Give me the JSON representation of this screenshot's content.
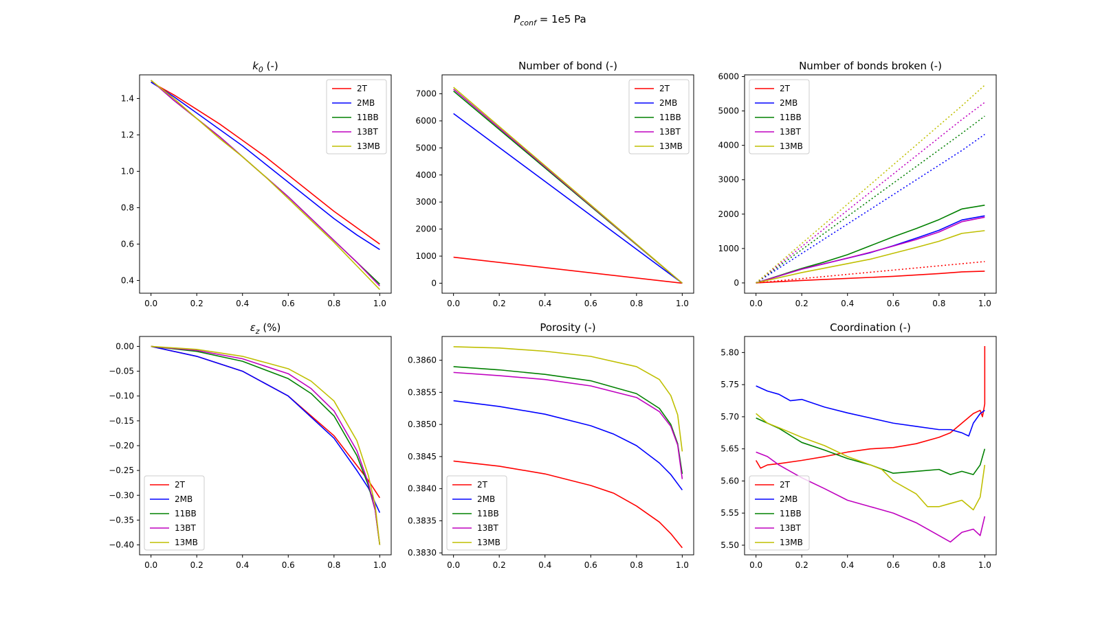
{
  "suptitle": {
    "main": "P",
    "sub": "conf",
    "rest": " = 1e5 Pa"
  },
  "colors": {
    "2T": "#ff0000",
    "2MB": "#0000ff",
    "11BB": "#008000",
    "13BT": "#bf00bf",
    "13MB": "#bfbf00"
  },
  "legend_labels": [
    "2T",
    "2MB",
    "11BB",
    "13BT",
    "13MB"
  ],
  "chart_data": [
    {
      "id": "k0",
      "type": "line",
      "title": {
        "main": "k",
        "sub": "0",
        "rest": " (-)"
      },
      "xlim": [
        -0.05,
        1.05
      ],
      "ylim": [
        0.33,
        1.53
      ],
      "xticks": [
        0.0,
        0.2,
        0.4,
        0.6,
        0.8,
        1.0
      ],
      "xtick_labels": [
        "0.0",
        "0.2",
        "0.4",
        "0.6",
        "0.8",
        "1.0"
      ],
      "yticks": [
        0.4,
        0.6,
        0.8,
        1.0,
        1.2,
        1.4
      ],
      "ytick_labels": [
        "0.4",
        "0.6",
        "0.8",
        "1.0",
        "1.2",
        "1.4"
      ],
      "legend": "top-right",
      "series": [
        {
          "name": "2T",
          "x": [
            0,
            0.1,
            0.2,
            0.3,
            0.4,
            0.5,
            0.6,
            0.7,
            0.8,
            0.9,
            1.0
          ],
          "y": [
            1.49,
            1.42,
            1.34,
            1.26,
            1.17,
            1.08,
            0.98,
            0.88,
            0.78,
            0.69,
            0.6
          ]
        },
        {
          "name": "2MB",
          "x": [
            0,
            0.1,
            0.2,
            0.3,
            0.4,
            0.5,
            0.6,
            0.7,
            0.8,
            0.9,
            1.0
          ],
          "y": [
            1.49,
            1.41,
            1.32,
            1.23,
            1.14,
            1.04,
            0.94,
            0.84,
            0.74,
            0.65,
            0.57
          ]
        },
        {
          "name": "11BB",
          "x": [
            0,
            0.1,
            0.2,
            0.3,
            0.4,
            0.5,
            0.6,
            0.7,
            0.8,
            0.9,
            1.0
          ],
          "y": [
            1.5,
            1.39,
            1.29,
            1.19,
            1.08,
            0.97,
            0.86,
            0.74,
            0.62,
            0.5,
            0.38
          ]
        },
        {
          "name": "13BT",
          "x": [
            0,
            0.1,
            0.2,
            0.3,
            0.4,
            0.5,
            0.6,
            0.7,
            0.8,
            0.9,
            1.0
          ],
          "y": [
            1.5,
            1.39,
            1.29,
            1.19,
            1.08,
            0.97,
            0.86,
            0.74,
            0.62,
            0.5,
            0.37
          ]
        },
        {
          "name": "13MB",
          "x": [
            0,
            0.1,
            0.2,
            0.3,
            0.4,
            0.5,
            0.6,
            0.7,
            0.8,
            0.9,
            1.0
          ],
          "y": [
            1.5,
            1.4,
            1.29,
            1.18,
            1.08,
            0.97,
            0.85,
            0.73,
            0.61,
            0.48,
            0.35
          ]
        }
      ]
    },
    {
      "id": "bonds",
      "type": "line",
      "title": {
        "main": "Number of bond (-)",
        "sub": "",
        "rest": ""
      },
      "xlim": [
        -0.05,
        1.05
      ],
      "ylim": [
        -370,
        7700
      ],
      "xticks": [
        0.0,
        0.2,
        0.4,
        0.6,
        0.8,
        1.0
      ],
      "xtick_labels": [
        "0.0",
        "0.2",
        "0.4",
        "0.6",
        "0.8",
        "1.0"
      ],
      "yticks": [
        0,
        1000,
        2000,
        3000,
        4000,
        5000,
        6000,
        7000
      ],
      "ytick_labels": [
        "0",
        "1000",
        "2000",
        "3000",
        "4000",
        "5000",
        "6000",
        "7000"
      ],
      "legend": "top-right",
      "series": [
        {
          "name": "2T",
          "x": [
            0,
            1
          ],
          "y": [
            960,
            0
          ]
        },
        {
          "name": "2MB",
          "x": [
            0,
            1
          ],
          "y": [
            6270,
            0
          ]
        },
        {
          "name": "11BB",
          "x": [
            0,
            1
          ],
          "y": [
            7100,
            0
          ]
        },
        {
          "name": "13BT",
          "x": [
            0,
            1
          ],
          "y": [
            7170,
            0
          ]
        },
        {
          "name": "13MB",
          "x": [
            0,
            1
          ],
          "y": [
            7240,
            0
          ]
        }
      ]
    },
    {
      "id": "broken",
      "type": "line",
      "title": {
        "main": "Number of bonds broken (-)",
        "sub": "",
        "rest": ""
      },
      "xlim": [
        -0.05,
        1.05
      ],
      "ylim": [
        -300,
        6050
      ],
      "xticks": [
        0.0,
        0.2,
        0.4,
        0.6,
        0.8,
        1.0
      ],
      "xtick_labels": [
        "0.0",
        "0.2",
        "0.4",
        "0.6",
        "0.8",
        "1.0"
      ],
      "yticks": [
        0,
        1000,
        2000,
        3000,
        4000,
        5000,
        6000
      ],
      "ytick_labels": [
        "0",
        "1000",
        "2000",
        "3000",
        "4000",
        "5000",
        "6000"
      ],
      "legend": "top-left",
      "series": [
        {
          "name": "2T",
          "x": [
            0,
            0.2,
            0.4,
            0.6,
            0.8,
            0.9,
            1.0
          ],
          "y": [
            0,
            70,
            130,
            190,
            270,
            320,
            340
          ]
        },
        {
          "name": "2MB",
          "x": [
            0,
            0.1,
            0.2,
            0.3,
            0.4,
            0.5,
            0.6,
            0.7,
            0.8,
            0.9,
            1.0
          ],
          "y": [
            0,
            200,
            400,
            560,
            720,
            880,
            1080,
            1300,
            1530,
            1830,
            1950
          ]
        },
        {
          "name": "11BB",
          "x": [
            0,
            0.1,
            0.2,
            0.3,
            0.4,
            0.5,
            0.6,
            0.7,
            0.8,
            0.9,
            1.0
          ],
          "y": [
            0,
            210,
            420,
            610,
            820,
            1080,
            1340,
            1580,
            1840,
            2150,
            2260
          ]
        },
        {
          "name": "13BT",
          "x": [
            0,
            0.1,
            0.2,
            0.3,
            0.4,
            0.5,
            0.6,
            0.7,
            0.8,
            0.9,
            1.0
          ],
          "y": [
            0,
            200,
            400,
            560,
            720,
            890,
            1070,
            1260,
            1480,
            1780,
            1910
          ]
        },
        {
          "name": "13MB",
          "x": [
            0,
            0.1,
            0.2,
            0.3,
            0.4,
            0.5,
            0.6,
            0.7,
            0.8,
            0.9,
            1.0
          ],
          "y": [
            0,
            150,
            300,
            430,
            560,
            690,
            860,
            1030,
            1210,
            1440,
            1520
          ]
        },
        {
          "name": "2T",
          "dotted": true,
          "x": [
            0,
            1
          ],
          "y": [
            0,
            620
          ]
        },
        {
          "name": "2MB",
          "dotted": true,
          "x": [
            0,
            0.9,
            1.0
          ],
          "y": [
            0,
            3850,
            4320
          ]
        },
        {
          "name": "11BB",
          "dotted": true,
          "x": [
            0,
            0.9,
            1.0
          ],
          "y": [
            0,
            4350,
            4850
          ]
        },
        {
          "name": "13BT",
          "dotted": true,
          "x": [
            0,
            0.9,
            1.0
          ],
          "y": [
            0,
            4750,
            5250
          ]
        },
        {
          "name": "13MB",
          "dotted": true,
          "x": [
            0,
            0.9,
            1.0
          ],
          "y": [
            0,
            5150,
            5750
          ]
        }
      ]
    },
    {
      "id": "epsz",
      "type": "line",
      "title": {
        "main": "ε",
        "sub": "z",
        "rest": " (%)"
      },
      "xlim": [
        -0.05,
        1.05
      ],
      "ylim": [
        -0.42,
        0.02
      ],
      "xticks": [
        0.0,
        0.2,
        0.4,
        0.6,
        0.8,
        1.0
      ],
      "xtick_labels": [
        "0.0",
        "0.2",
        "0.4",
        "0.6",
        "0.8",
        "1.0"
      ],
      "yticks": [
        0.0,
        -0.05,
        -0.1,
        -0.15,
        -0.2,
        -0.25,
        -0.3,
        -0.35,
        -0.4
      ],
      "ytick_labels": [
        "0.00",
        "−0.05",
        "−0.10",
        "−0.15",
        "−0.20",
        "−0.25",
        "−0.30",
        "−0.35",
        "−0.40"
      ],
      "legend": "bottom-left",
      "series": [
        {
          "name": "2T",
          "x": [
            0,
            0.2,
            0.4,
            0.6,
            0.8,
            0.9,
            0.95,
            1.0
          ],
          "y": [
            0,
            -0.02,
            -0.05,
            -0.1,
            -0.18,
            -0.24,
            -0.27,
            -0.305
          ]
        },
        {
          "name": "2MB",
          "x": [
            0,
            0.2,
            0.4,
            0.6,
            0.8,
            0.9,
            0.95,
            1.0
          ],
          "y": [
            0,
            -0.02,
            -0.05,
            -0.1,
            -0.185,
            -0.25,
            -0.285,
            -0.335
          ]
        },
        {
          "name": "11BB",
          "x": [
            0,
            0.2,
            0.4,
            0.6,
            0.7,
            0.8,
            0.9,
            0.95,
            0.98,
            1.0
          ],
          "y": [
            0,
            -0.01,
            -0.03,
            -0.065,
            -0.095,
            -0.14,
            -0.22,
            -0.28,
            -0.33,
            -0.4
          ]
        },
        {
          "name": "13BT",
          "x": [
            0,
            0.2,
            0.4,
            0.6,
            0.7,
            0.8,
            0.9,
            0.95,
            0.98,
            1.0
          ],
          "y": [
            0,
            -0.008,
            -0.025,
            -0.055,
            -0.085,
            -0.13,
            -0.21,
            -0.275,
            -0.33,
            -0.4
          ]
        },
        {
          "name": "13MB",
          "x": [
            0,
            0.2,
            0.4,
            0.6,
            0.7,
            0.8,
            0.9,
            0.95,
            0.98,
            1.0
          ],
          "y": [
            0,
            -0.006,
            -0.02,
            -0.045,
            -0.07,
            -0.11,
            -0.19,
            -0.26,
            -0.32,
            -0.4
          ]
        }
      ]
    },
    {
      "id": "porosity",
      "type": "line",
      "title": {
        "main": "Porosity (-)",
        "sub": "",
        "rest": ""
      },
      "xlim": [
        -0.05,
        1.05
      ],
      "ylim": [
        0.38297,
        0.38637
      ],
      "xticks": [
        0.0,
        0.2,
        0.4,
        0.6,
        0.8,
        1.0
      ],
      "xtick_labels": [
        "0.0",
        "0.2",
        "0.4",
        "0.6",
        "0.8",
        "1.0"
      ],
      "yticks": [
        0.383,
        0.3835,
        0.384,
        0.3845,
        0.385,
        0.3855,
        0.386
      ],
      "ytick_labels": [
        "0.3830",
        "0.3835",
        "0.3840",
        "0.3845",
        "0.3850",
        "0.3855",
        "0.3860"
      ],
      "legend": "bottom-left",
      "series": [
        {
          "name": "2T",
          "x": [
            0,
            0.2,
            0.4,
            0.6,
            0.7,
            0.8,
            0.9,
            0.95,
            1.0
          ],
          "y": [
            0.38443,
            0.38435,
            0.38423,
            0.38405,
            0.38393,
            0.38373,
            0.38348,
            0.3833,
            0.38308
          ]
        },
        {
          "name": "2MB",
          "x": [
            0,
            0.2,
            0.4,
            0.6,
            0.7,
            0.8,
            0.9,
            0.95,
            1.0
          ],
          "y": [
            0.38537,
            0.38528,
            0.38516,
            0.38498,
            0.38485,
            0.38467,
            0.3844,
            0.38422,
            0.38398
          ]
        },
        {
          "name": "11BB",
          "x": [
            0,
            0.2,
            0.4,
            0.6,
            0.8,
            0.9,
            0.95,
            0.98,
            1.0
          ],
          "y": [
            0.3859,
            0.38585,
            0.38578,
            0.38568,
            0.38548,
            0.38525,
            0.385,
            0.3847,
            0.38423
          ]
        },
        {
          "name": "13BT",
          "x": [
            0,
            0.2,
            0.4,
            0.6,
            0.8,
            0.9,
            0.95,
            0.98,
            1.0
          ],
          "y": [
            0.38581,
            0.38576,
            0.3857,
            0.3856,
            0.38542,
            0.3852,
            0.38497,
            0.38468,
            0.38415
          ]
        },
        {
          "name": "13MB",
          "x": [
            0,
            0.2,
            0.4,
            0.6,
            0.8,
            0.9,
            0.95,
            0.98,
            1.0
          ],
          "y": [
            0.38621,
            0.38619,
            0.38614,
            0.38606,
            0.3859,
            0.3857,
            0.38545,
            0.38515,
            0.38458
          ]
        }
      ]
    },
    {
      "id": "coordination",
      "type": "line",
      "title": {
        "main": "Coordination (-)",
        "sub": "",
        "rest": ""
      },
      "xlim": [
        -0.05,
        1.05
      ],
      "ylim": [
        5.485,
        5.825
      ],
      "xticks": [
        0.0,
        0.2,
        0.4,
        0.6,
        0.8,
        1.0
      ],
      "xtick_labels": [
        "0.0",
        "0.2",
        "0.4",
        "0.6",
        "0.8",
        "1.0"
      ],
      "yticks": [
        5.5,
        5.55,
        5.6,
        5.65,
        5.7,
        5.75,
        5.8
      ],
      "ytick_labels": [
        "5.50",
        "5.55",
        "5.60",
        "5.65",
        "5.70",
        "5.75",
        "5.80"
      ],
      "legend": "bottom-left",
      "series": [
        {
          "name": "2T",
          "x": [
            0,
            0.02,
            0.05,
            0.1,
            0.2,
            0.3,
            0.4,
            0.5,
            0.6,
            0.7,
            0.8,
            0.85,
            0.9,
            0.95,
            0.98,
            0.99,
            1.0,
            1.0
          ],
          "y": [
            5.632,
            5.62,
            5.625,
            5.627,
            5.632,
            5.638,
            5.645,
            5.65,
            5.652,
            5.658,
            5.668,
            5.675,
            5.69,
            5.705,
            5.71,
            5.7,
            5.72,
            5.81
          ]
        },
        {
          "name": "2MB",
          "x": [
            0,
            0.05,
            0.1,
            0.15,
            0.2,
            0.3,
            0.4,
            0.5,
            0.6,
            0.7,
            0.8,
            0.85,
            0.9,
            0.93,
            0.95,
            0.98,
            1.0
          ],
          "y": [
            5.748,
            5.74,
            5.735,
            5.725,
            5.727,
            5.715,
            5.706,
            5.698,
            5.69,
            5.685,
            5.68,
            5.68,
            5.675,
            5.67,
            5.69,
            5.705,
            5.71
          ]
        },
        {
          "name": "11BB",
          "x": [
            0,
            0.05,
            0.1,
            0.2,
            0.3,
            0.4,
            0.5,
            0.6,
            0.7,
            0.8,
            0.85,
            0.9,
            0.95,
            0.98,
            1.0
          ],
          "y": [
            5.698,
            5.69,
            5.682,
            5.66,
            5.648,
            5.635,
            5.625,
            5.612,
            5.615,
            5.618,
            5.61,
            5.615,
            5.61,
            5.625,
            5.65
          ]
        },
        {
          "name": "13BT",
          "x": [
            0,
            0.05,
            0.1,
            0.2,
            0.3,
            0.4,
            0.5,
            0.6,
            0.7,
            0.75,
            0.8,
            0.85,
            0.9,
            0.95,
            0.98,
            1.0
          ],
          "y": [
            5.645,
            5.638,
            5.625,
            5.605,
            5.588,
            5.57,
            5.56,
            5.55,
            5.535,
            5.525,
            5.515,
            5.505,
            5.52,
            5.525,
            5.515,
            5.545
          ]
        },
        {
          "name": "13MB",
          "x": [
            0,
            0.05,
            0.1,
            0.2,
            0.3,
            0.4,
            0.5,
            0.55,
            0.6,
            0.7,
            0.75,
            0.8,
            0.85,
            0.9,
            0.95,
            0.98,
            1.0
          ],
          "y": [
            5.705,
            5.69,
            5.683,
            5.668,
            5.655,
            5.638,
            5.625,
            5.618,
            5.6,
            5.58,
            5.56,
            5.56,
            5.565,
            5.57,
            5.555,
            5.575,
            5.625
          ]
        }
      ]
    }
  ]
}
